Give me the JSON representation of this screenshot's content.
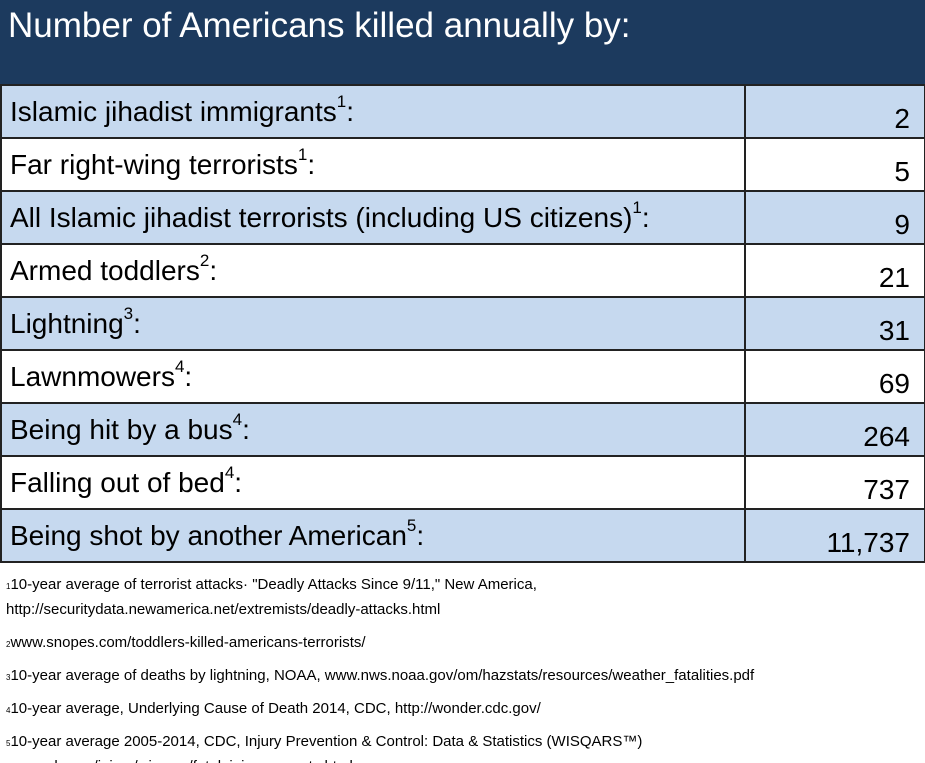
{
  "header": {
    "title": "Number of Americans killed annually by:"
  },
  "table": {
    "rows": [
      {
        "label": "Islamic jihadist immigrants",
        "note": "1",
        "punct": ":",
        "value": "2"
      },
      {
        "label": "Far right-wing terrorists",
        "note": "1",
        "punct": ":",
        "value": "5"
      },
      {
        "label": "All Islamic jihadist terrorists (including US citizens)",
        "note": "1",
        "punct": ":",
        "value": "9"
      },
      {
        "label": "Armed toddlers",
        "note": "2",
        "punct": ":",
        "value": "21"
      },
      {
        "label": "Lightning",
        "note": "3",
        "punct": ":",
        "value": "31"
      },
      {
        "label": "Lawnmowers",
        "note": "4",
        "punct": ":",
        "value": "69"
      },
      {
        "label": "Being hit by a bus",
        "note": "4",
        "punct": ":",
        "value": "264"
      },
      {
        "label": "Falling out of bed",
        "note": "4",
        "punct": ":",
        "value": "737"
      },
      {
        "label": "Being shot by another American",
        "note": "5",
        "punct": ":",
        "value": "11,737"
      }
    ]
  },
  "footnotes": [
    {
      "marker": "1",
      "lines": [
        "10-year average of terrorist attacks· \"Deadly Attacks Since 9/11,\" New America,",
        "http://securitydata.newamerica.net/extremists/deadly-attacks.html"
      ]
    },
    {
      "marker": "2",
      "lines": [
        "www.snopes.com/toddlers-killed-americans-terrorists/"
      ]
    },
    {
      "marker": "3",
      "lines": [
        "10-year average of deaths by lightning, NOAA, www.nws.noaa.gov/om/hazstats/resources/weather_fatalities.pdf"
      ]
    },
    {
      "marker": "4",
      "lines": [
        "10-year average, Underlying Cause of Death 2014, CDC, http://wonder.cdc.gov/"
      ]
    },
    {
      "marker": "5",
      "lines": [
        "10-year average 2005-2014, CDC, Injury Prevention & Control: Data & Statistics (WISQARS™)",
        "www.cdc.gov/injury/wisqars/fatal_injury_reports.html"
      ]
    }
  ]
}
